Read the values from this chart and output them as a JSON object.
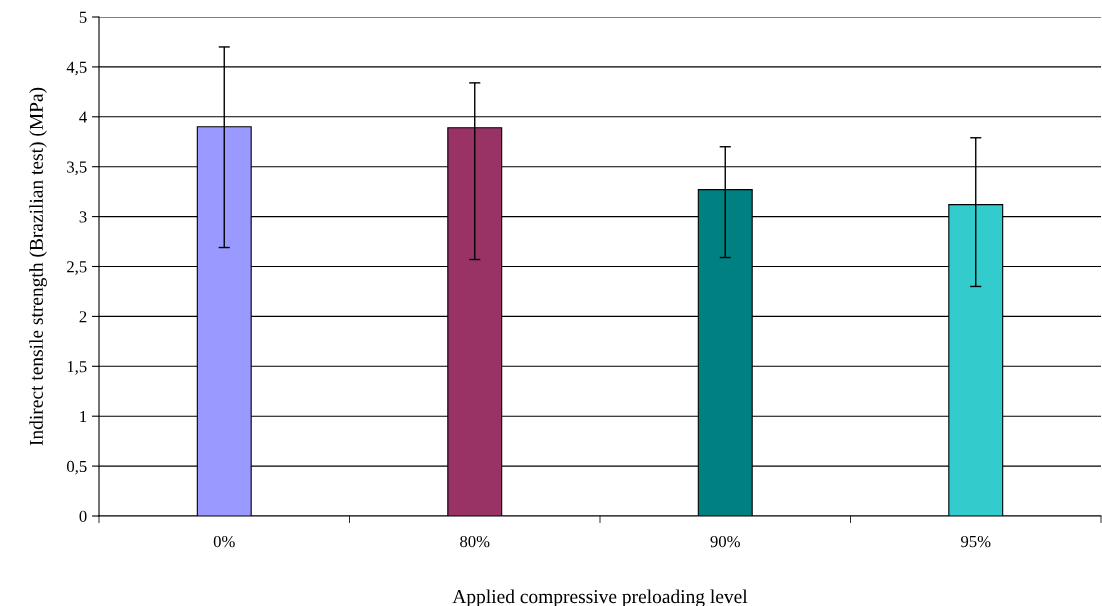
{
  "chart_data": {
    "type": "bar",
    "xlabel": "Applied compressive preloading level",
    "ylabel": "Indirect tensile strength (Brazilian test) (MPa)",
    "categories": [
      "0%",
      "80%",
      "90%",
      "95%"
    ],
    "values": [
      3.9,
      3.89,
      3.27,
      3.12
    ],
    "colors": [
      "#9999ff",
      "#993366",
      "#008080",
      "#33cccc"
    ],
    "errors": [
      [
        2.69,
        4.7
      ],
      [
        2.57,
        4.34
      ],
      [
        2.59,
        3.7
      ],
      [
        2.3,
        3.79
      ]
    ],
    "ylim": [
      0,
      5
    ],
    "yticks": [
      0,
      {
        "value": 0.5,
        "label": "0,5"
      },
      1,
      {
        "value": 1.5,
        "label": "1,5"
      },
      2,
      {
        "value": 2.5,
        "label": "2,5"
      },
      3,
      {
        "value": 3.5,
        "label": "3,5"
      },
      4,
      {
        "value": 4.5,
        "label": "4,5"
      },
      5
    ],
    "grid": "y",
    "legend": false
  }
}
